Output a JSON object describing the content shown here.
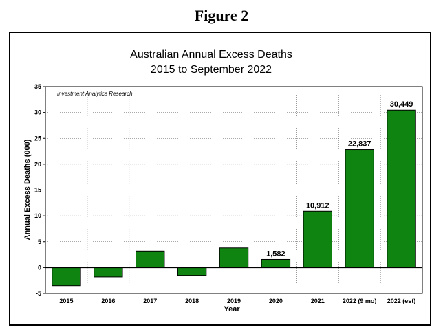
{
  "figure_heading": "Figure 2",
  "chart_data": {
    "type": "bar",
    "title_line1": "Australian Annual Excess Deaths",
    "title_line2": "2015 to September 2022",
    "source_note": "Investment Analytics Research",
    "xlabel": "Year",
    "ylabel": "Annual Excess Deaths (000)",
    "categories": [
      "2015",
      "2016",
      "2017",
      "2018",
      "2019",
      "2020",
      "2021",
      "2022 (9 mo)",
      "2022 (est)"
    ],
    "values": [
      -3.5,
      -1.8,
      3.2,
      -1.5,
      3.8,
      1.582,
      10.912,
      22.837,
      30.449
    ],
    "data_labels": [
      "",
      "",
      "",
      "",
      "",
      "1,582",
      "10,912",
      "22,837",
      "30,449"
    ],
    "yticks": [
      35,
      30,
      25,
      20,
      15,
      10,
      5,
      0,
      -5
    ],
    "ylim": [
      -5,
      35
    ],
    "grid": true,
    "bar_color": "#108410",
    "bar_edge_color": "#000000"
  }
}
